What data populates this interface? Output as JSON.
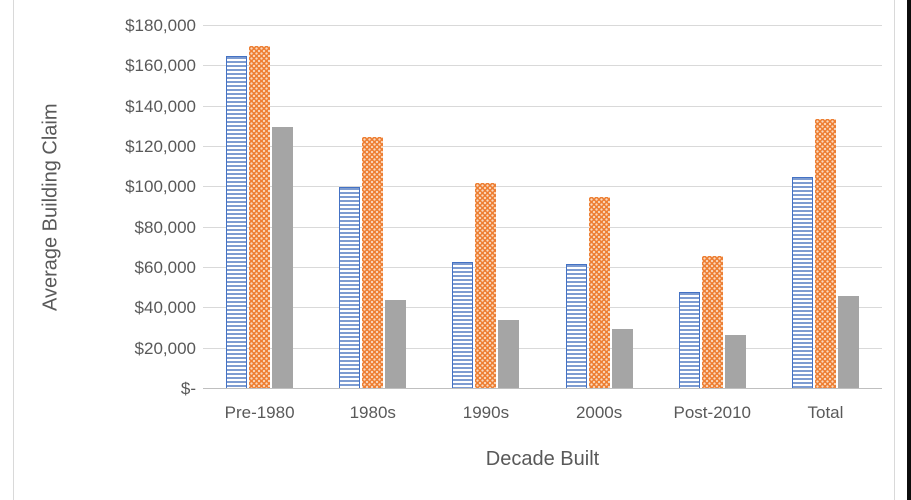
{
  "chart_data": {
    "type": "bar",
    "title": "",
    "categories": [
      "Pre-1980",
      "1980s",
      "1990s",
      "2000s",
      "Post-2010",
      "Total"
    ],
    "series": [
      {
        "name": "blue-striped",
        "pattern": "horizontal-stripes",
        "color": "#4472C4",
        "light": "#7E9CD1",
        "values": [
          165000,
          100000,
          63000,
          62000,
          48000,
          105000
        ]
      },
      {
        "name": "orange-dotted",
        "pattern": "dots",
        "color": "#ED7D31",
        "light": "#FAD9BE",
        "values": [
          170000,
          125000,
          102000,
          95000,
          66000,
          134000
        ]
      },
      {
        "name": "gray-solid",
        "pattern": "solid",
        "color": "#A5A5A5",
        "light": "#A5A5A5",
        "values": [
          130000,
          44000,
          34000,
          30000,
          27000,
          46000
        ]
      }
    ],
    "xlabel": "Decade Built",
    "ylabel": "Average Building Claim",
    "ylim": [
      0,
      180000
    ],
    "ytick_step": 20000,
    "ytick_labels": [
      "$-",
      "$20,000",
      "$40,000",
      "$60,000",
      "$80,000",
      "$100,000",
      "$120,000",
      "$140,000",
      "$160,000",
      "$180,000"
    ],
    "grid": true,
    "legend": "none"
  },
  "colors": {
    "gridline": "#D9D9D9",
    "axis_line": "#BFBFBF",
    "tick_text": "#595959",
    "title_text": "#595959",
    "frame": "#D9D9D9",
    "right_edge_strip": "#0d0d0d",
    "background": "#ffffff"
  }
}
